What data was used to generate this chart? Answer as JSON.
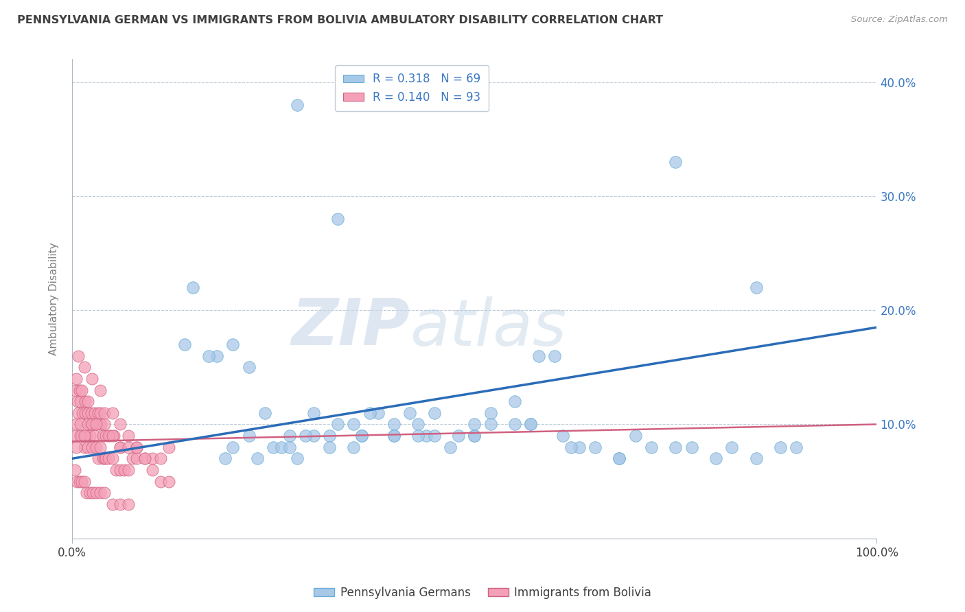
{
  "title": "PENNSYLVANIA GERMAN VS IMMIGRANTS FROM BOLIVIA AMBULATORY DISABILITY CORRELATION CHART",
  "source": "Source: ZipAtlas.com",
  "ylabel": "Ambulatory Disability",
  "xlim": [
    0,
    100
  ],
  "ylim": [
    0,
    42
  ],
  "yticks": [
    0,
    10,
    20,
    30,
    40
  ],
  "blue_color": "#a8c8e8",
  "blue_edge": "#6aaed6",
  "blue_line_color": "#2b6cb8",
  "pink_color": "#f4a0b8",
  "pink_edge": "#d06080",
  "pink_line_color": "#d06080",
  "watermark_zip": "ZIP",
  "watermark_atlas": "atlas",
  "bg_color": "#ffffff",
  "grid_color": "#c0ccd8",
  "title_color": "#404040",
  "label_color": "#3b78c3",
  "axis_label_color": "#808080",
  "blue_scatter_x": [
    28,
    15,
    33,
    20,
    22,
    25,
    27,
    30,
    18,
    32,
    35,
    38,
    40,
    42,
    45,
    47,
    50,
    52,
    55,
    58,
    60,
    63,
    65,
    68,
    70,
    72,
    75,
    77,
    80,
    82,
    85,
    88,
    90,
    14,
    17,
    22,
    26,
    29,
    33,
    36,
    40,
    44,
    48,
    52,
    57,
    61,
    24,
    30,
    37,
    43,
    50,
    57,
    20,
    28,
    35,
    43,
    75,
    85,
    19,
    23,
    27,
    32,
    36,
    40,
    45,
    50,
    55,
    62,
    68
  ],
  "blue_scatter_y": [
    38,
    22,
    28,
    17,
    9,
    8,
    9,
    9,
    16,
    9,
    10,
    11,
    10,
    11,
    11,
    8,
    10,
    11,
    12,
    16,
    16,
    8,
    8,
    7,
    9,
    8,
    8,
    8,
    7,
    8,
    7,
    8,
    8,
    17,
    16,
    15,
    8,
    9,
    10,
    9,
    9,
    9,
    9,
    10,
    10,
    9,
    11,
    11,
    11,
    10,
    9,
    10,
    8,
    7,
    8,
    9,
    33,
    22,
    7,
    7,
    8,
    8,
    9,
    9,
    9,
    9,
    10,
    8,
    7
  ],
  "pink_scatter_x": [
    0.3,
    0.5,
    0.8,
    1.0,
    1.2,
    1.5,
    1.8,
    2.0,
    2.2,
    2.5,
    2.8,
    3.0,
    3.2,
    3.5,
    3.8,
    4.0,
    4.2,
    4.5,
    5.0,
    5.5,
    6.0,
    6.5,
    7.0,
    7.5,
    8.0,
    9.0,
    10.0,
    11.0,
    12.0,
    0.4,
    0.7,
    1.0,
    1.3,
    1.6,
    2.0,
    2.3,
    2.7,
    3.0,
    3.4,
    3.8,
    4.2,
    4.7,
    5.2,
    6.0,
    0.5,
    0.9,
    1.2,
    1.6,
    2.0,
    2.4,
    2.8,
    3.2,
    3.6,
    4.0,
    4.5,
    5.0,
    6.0,
    7.0,
    8.0,
    0.3,
    0.6,
    0.9,
    1.2,
    1.5,
    1.8,
    2.2,
    2.6,
    3.0,
    3.5,
    4.0,
    5.0,
    6.0,
    7.0,
    0.5,
    1.0,
    1.5,
    2.0,
    2.5,
    3.0,
    3.5,
    4.0,
    5.0,
    6.0,
    7.0,
    8.0,
    9.0,
    10.0,
    11.0,
    12.0,
    0.8,
    1.5,
    2.5,
    3.5
  ],
  "pink_scatter_y": [
    9,
    10,
    11,
    10,
    9,
    8,
    9,
    8,
    9,
    8,
    9,
    8,
    7,
    8,
    7,
    7,
    7,
    7,
    7,
    6,
    6,
    6,
    6,
    7,
    7,
    7,
    7,
    7,
    8,
    13,
    12,
    12,
    11,
    11,
    11,
    10,
    10,
    10,
    10,
    9,
    9,
    9,
    9,
    8,
    14,
    13,
    13,
    12,
    12,
    11,
    11,
    11,
    10,
    10,
    9,
    9,
    8,
    8,
    8,
    6,
    5,
    5,
    5,
    5,
    4,
    4,
    4,
    4,
    4,
    4,
    3,
    3,
    3,
    8,
    9,
    9,
    10,
    10,
    10,
    11,
    11,
    11,
    10,
    9,
    8,
    7,
    6,
    5,
    5,
    16,
    15,
    14,
    13
  ],
  "blue_line_y_start": 7.0,
  "blue_line_y_end": 18.5,
  "pink_line_y_start": 8.5,
  "pink_line_y_end": 10.0
}
